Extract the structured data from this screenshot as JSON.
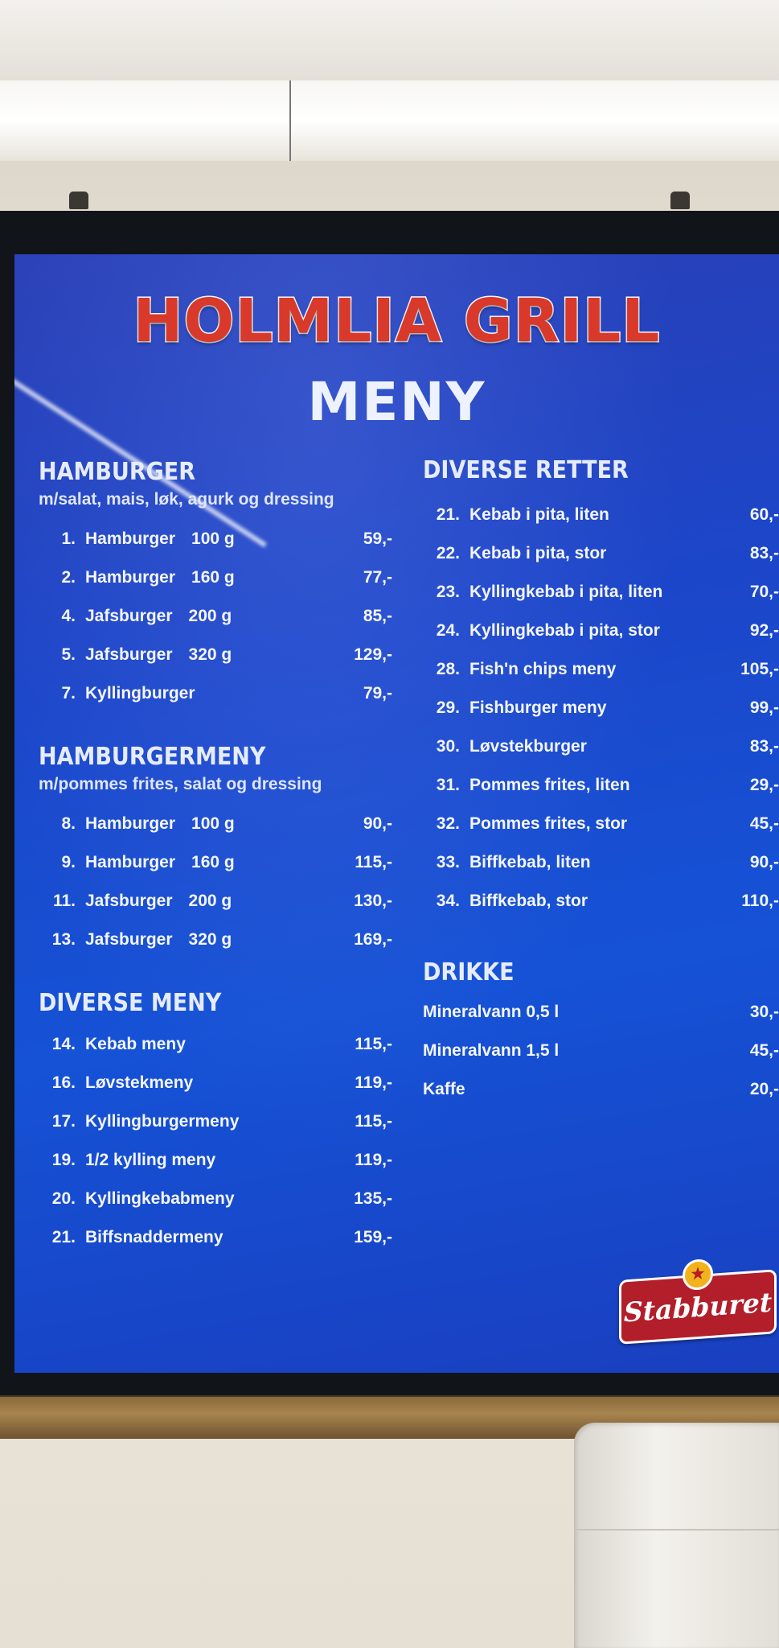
{
  "title": "HOLMLIA GRILL",
  "subtitle": "MENY",
  "logo": "Stabburet",
  "left_sections": [
    {
      "title": "HAMBURGER",
      "note": "m/salat, mais, løk, agurk og dressing",
      "items": [
        {
          "num": "1.",
          "name": "Hamburger",
          "size": "100 g",
          "price": "59,-"
        },
        {
          "num": "2.",
          "name": "Hamburger",
          "size": "160 g",
          "price": "77,-"
        },
        {
          "num": "4.",
          "name": "Jafsburger",
          "size": "200 g",
          "price": "85,-"
        },
        {
          "num": "5.",
          "name": "Jafsburger",
          "size": "320 g",
          "price": "129,-"
        },
        {
          "num": "7.",
          "name": "Kyllingburger",
          "size": "",
          "price": "79,-"
        }
      ]
    },
    {
      "title": "HAMBURGERMENY",
      "note": "m/pommes frites, salat og dressing",
      "items": [
        {
          "num": "8.",
          "name": "Hamburger",
          "size": "100 g",
          "price": "90,-"
        },
        {
          "num": "9.",
          "name": "Hamburger",
          "size": "160 g",
          "price": "115,-"
        },
        {
          "num": "11.",
          "name": "Jafsburger",
          "size": "200 g",
          "price": "130,-"
        },
        {
          "num": "13.",
          "name": "Jafsburger",
          "size": "320 g",
          "price": "169,-"
        }
      ]
    },
    {
      "title": "DIVERSE MENY",
      "note": "",
      "items": [
        {
          "num": "14.",
          "name": "Kebab meny",
          "size": "",
          "price": "115,-"
        },
        {
          "num": "16.",
          "name": "Løvstekmeny",
          "size": "",
          "price": "119,-"
        },
        {
          "num": "17.",
          "name": "Kyllingburgermeny",
          "size": "",
          "price": "115,-"
        },
        {
          "num": "19.",
          "name": "1/2 kylling meny",
          "size": "",
          "price": "119,-"
        },
        {
          "num": "20.",
          "name": "Kyllingkebabmeny",
          "size": "",
          "price": "135,-"
        },
        {
          "num": "21.",
          "name": "Biffsnaddermeny",
          "size": "",
          "price": "159,-"
        }
      ]
    }
  ],
  "right_sections": [
    {
      "title": "DIVERSE RETTER",
      "items": [
        {
          "num": "21.",
          "name": "Kebab i pita, liten",
          "price": "60,-"
        },
        {
          "num": "22.",
          "name": "Kebab i pita, stor",
          "price": "83,-"
        },
        {
          "num": "23.",
          "name": "Kyllingkebab i pita, liten",
          "price": "70,-"
        },
        {
          "num": "24.",
          "name": "Kyllingkebab i pita, stor",
          "price": "92,-"
        },
        {
          "num": "28.",
          "name": "Fish'n chips meny",
          "price": "105,-"
        },
        {
          "num": "29.",
          "name": "Fishburger meny",
          "price": "99,-"
        },
        {
          "num": "30.",
          "name": "Løvstekburger",
          "price": "83,-"
        },
        {
          "num": "31.",
          "name": "Pommes frites, liten",
          "price": "29,-"
        },
        {
          "num": "32.",
          "name": "Pommes frites, stor",
          "price": "45,-"
        },
        {
          "num": "33.",
          "name": "Biffkebab, liten",
          "price": "90,-"
        },
        {
          "num": "34.",
          "name": "Biffkebab, stor",
          "price": "110,-"
        }
      ]
    },
    {
      "title": "DRIKKE",
      "items": [
        {
          "num": "",
          "name": "Mineralvann 0,5 l",
          "price": "30,-"
        },
        {
          "num": "",
          "name": "Mineralvann 1,5 l",
          "price": "45,-"
        },
        {
          "num": "",
          "name": "Kaffe",
          "price": "20,-"
        }
      ]
    }
  ]
}
